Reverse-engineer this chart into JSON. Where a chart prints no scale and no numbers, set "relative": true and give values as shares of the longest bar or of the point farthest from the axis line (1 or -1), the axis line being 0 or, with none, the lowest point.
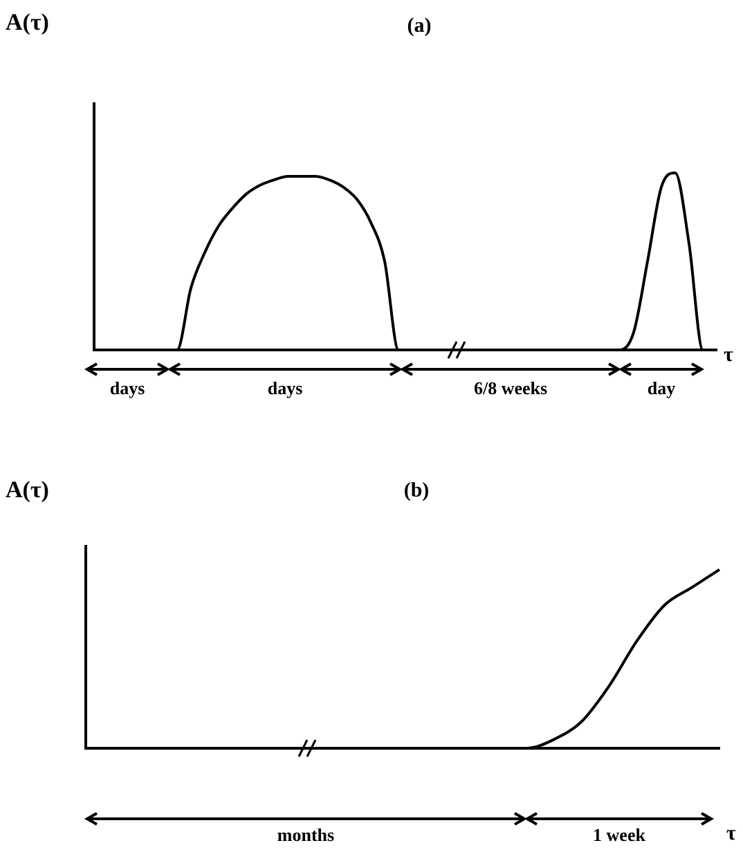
{
  "chart_data": [
    {
      "type": "line",
      "title": "(a)",
      "ylabel": "A(τ)",
      "xlabel": "τ",
      "relative": true,
      "tick_labels": false,
      "grid": false,
      "legend": false,
      "marker": "none",
      "line_style": "solid",
      "categories": [
        null,
        null,
        null,
        null,
        null,
        null,
        null,
        null,
        null,
        null,
        null,
        null,
        null,
        null,
        null,
        null,
        null,
        null,
        null,
        null,
        null,
        null,
        null,
        null,
        null,
        null,
        null,
        null,
        null,
        null,
        null,
        null,
        null,
        null,
        null,
        null,
        null,
        null,
        null,
        null,
        null,
        null,
        null,
        null,
        null,
        null
      ],
      "series": [
        {
          "color": "#000000",
          "values": [
            0,
            0,
            0,
            0,
            0,
            0,
            0,
            0.35,
            0.55,
            0.7,
            0.8,
            0.88,
            0.93,
            0.96,
            0.98,
            0.98,
            0.98,
            0.96,
            0.92,
            0.85,
            0.72,
            0.5,
            0,
            0,
            0,
            0,
            0,
            0,
            0,
            0,
            0,
            0,
            0,
            0,
            0,
            0,
            0,
            0,
            0,
            0.1,
            0.5,
            0.92,
            1,
            0.6,
            0,
            0
          ]
        }
      ],
      "annotations": [
        "days",
        "days",
        "6/8 weeks",
        "day"
      ]
    },
    {
      "type": "line",
      "title": "(b)",
      "ylabel": "A(τ)",
      "xlabel": "τ",
      "relative": true,
      "tick_labels": false,
      "grid": false,
      "legend": false,
      "marker": "none",
      "line_style": "solid",
      "categories": [
        null,
        null,
        null,
        null,
        null,
        null,
        null,
        null,
        null,
        null,
        null,
        null,
        null,
        null,
        null,
        null,
        null,
        null,
        null,
        null,
        null,
        null,
        null,
        null
      ],
      "series": [
        {
          "color": "#000000",
          "values": [
            0,
            0,
            0,
            0,
            0,
            0,
            0,
            0,
            0,
            0,
            0,
            0,
            0,
            0,
            0,
            0,
            0,
            0.05,
            0.15,
            0.35,
            0.6,
            0.8,
            0.9,
            1
          ]
        }
      ],
      "annotations": [
        "months",
        "1 week"
      ]
    }
  ]
}
